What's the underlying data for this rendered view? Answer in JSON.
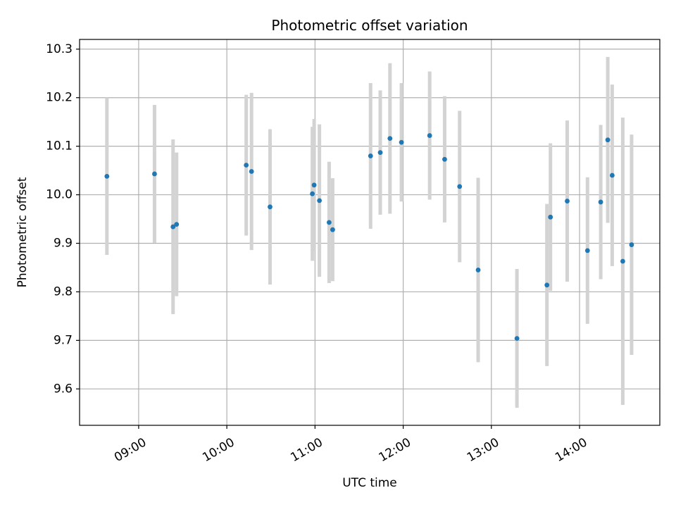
{
  "chart_data": {
    "type": "scatter",
    "title": "Photometric offset variation",
    "xlabel": "UTC time",
    "ylabel": "Photometric offset",
    "x_unit": "time of day (UTC), hours",
    "xlim": [
      8.33,
      14.91
    ],
    "ylim": [
      9.525,
      10.32
    ],
    "x_ticks": [
      {
        "value": 9,
        "label": "09:00"
      },
      {
        "value": 10,
        "label": "10:00"
      },
      {
        "value": 11,
        "label": "11:00"
      },
      {
        "value": 12,
        "label": "12:00"
      },
      {
        "value": 13,
        "label": "13:00"
      },
      {
        "value": 14,
        "label": "14:00"
      }
    ],
    "y_ticks": [
      {
        "value": 9.6,
        "label": "9.6"
      },
      {
        "value": 9.7,
        "label": "9.7"
      },
      {
        "value": 9.8,
        "label": "9.8"
      },
      {
        "value": 9.9,
        "label": "9.9"
      },
      {
        "value": 10.0,
        "label": "10.0"
      },
      {
        "value": 10.1,
        "label": "10.1"
      },
      {
        "value": 10.2,
        "label": "10.2"
      },
      {
        "value": 10.3,
        "label": "10.3"
      }
    ],
    "grid": true,
    "point_color": "#1f77b4",
    "errorbar_color": "#d3d3d3",
    "points": [
      {
        "t": "08:38",
        "x": 8.64,
        "y": 10.038,
        "err": 0.162
      },
      {
        "t": "09:11",
        "x": 9.18,
        "y": 10.043,
        "err": 0.142
      },
      {
        "t": "09:23",
        "x": 9.39,
        "y": 9.934,
        "err": 0.18
      },
      {
        "t": "09:26",
        "x": 9.43,
        "y": 9.939,
        "err": 0.148
      },
      {
        "t": "10:13",
        "x": 10.22,
        "y": 10.061,
        "err": 0.145
      },
      {
        "t": "10:17",
        "x": 10.28,
        "y": 10.048,
        "err": 0.162
      },
      {
        "t": "10:29",
        "x": 10.49,
        "y": 9.975,
        "err": 0.16
      },
      {
        "t": "10:58",
        "x": 10.97,
        "y": 10.002,
        "err": 0.138
      },
      {
        "t": "10:59",
        "x": 10.99,
        "y": 10.02,
        "err": 0.136
      },
      {
        "t": "11:03",
        "x": 11.05,
        "y": 9.988,
        "err": 0.157
      },
      {
        "t": "11:09",
        "x": 11.16,
        "y": 9.943,
        "err": 0.125
      },
      {
        "t": "11:12",
        "x": 11.2,
        "y": 9.928,
        "err": 0.106
      },
      {
        "t": "11:37",
        "x": 11.63,
        "y": 10.08,
        "err": 0.15
      },
      {
        "t": "11:45",
        "x": 11.74,
        "y": 10.087,
        "err": 0.128
      },
      {
        "t": "11:51",
        "x": 11.85,
        "y": 10.116,
        "err": 0.155
      },
      {
        "t": "11:59",
        "x": 11.98,
        "y": 10.108,
        "err": 0.122
      },
      {
        "t": "12:18",
        "x": 12.3,
        "y": 10.122,
        "err": 0.132
      },
      {
        "t": "12:28",
        "x": 12.47,
        "y": 10.073,
        "err": 0.13
      },
      {
        "t": "12:38",
        "x": 12.64,
        "y": 10.017,
        "err": 0.156
      },
      {
        "t": "12:51",
        "x": 12.85,
        "y": 9.845,
        "err": 0.19
      },
      {
        "t": "13:18",
        "x": 13.29,
        "y": 9.704,
        "err": 0.143
      },
      {
        "t": "13:37",
        "x": 13.63,
        "y": 9.814,
        "err": 0.167
      },
      {
        "t": "13:40",
        "x": 13.67,
        "y": 9.954,
        "err": 0.152
      },
      {
        "t": "13:51",
        "x": 13.86,
        "y": 9.987,
        "err": 0.166
      },
      {
        "t": "14:05",
        "x": 14.09,
        "y": 9.885,
        "err": 0.151
      },
      {
        "t": "14:14",
        "x": 14.24,
        "y": 9.985,
        "err": 0.159
      },
      {
        "t": "14:19",
        "x": 14.32,
        "y": 10.113,
        "err": 0.171
      },
      {
        "t": "14:22",
        "x": 14.37,
        "y": 10.04,
        "err": 0.187
      },
      {
        "t": "14:29",
        "x": 14.49,
        "y": 9.863,
        "err": 0.296
      },
      {
        "t": "14:35",
        "x": 14.59,
        "y": 9.897,
        "err": 0.227
      }
    ]
  }
}
